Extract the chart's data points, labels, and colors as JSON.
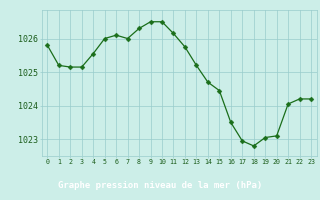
{
  "x": [
    0,
    1,
    2,
    3,
    4,
    5,
    6,
    7,
    8,
    9,
    10,
    11,
    12,
    13,
    14,
    15,
    16,
    17,
    18,
    19,
    20,
    21,
    22,
    23
  ],
  "y": [
    1025.8,
    1025.2,
    1025.15,
    1025.15,
    1025.55,
    1026.0,
    1026.1,
    1026.0,
    1026.3,
    1026.5,
    1026.5,
    1026.15,
    1025.75,
    1025.2,
    1024.7,
    1024.45,
    1023.5,
    1022.95,
    1022.8,
    1023.05,
    1023.1,
    1024.05,
    1024.2,
    1024.2
  ],
  "line_color": "#1a6e1a",
  "marker": "D",
  "marker_size": 2.5,
  "bg_color": "#cceee8",
  "grid_color": "#99cccc",
  "bottom_bar_color": "#2d6e2d",
  "title": "Graphe pression niveau de la mer (hPa)",
  "ytick_labels": [
    "1023",
    "1024",
    "1025",
    "1026"
  ],
  "ytick_values": [
    1023,
    1024,
    1025,
    1026
  ],
  "xtick_labels": [
    "0",
    "1",
    "2",
    "3",
    "4",
    "5",
    "6",
    "7",
    "8",
    "9",
    "10",
    "11",
    "12",
    "13",
    "14",
    "15",
    "16",
    "17",
    "18",
    "19",
    "20",
    "21",
    "22",
    "23"
  ],
  "ylim": [
    1022.5,
    1026.85
  ],
  "xlim": [
    -0.5,
    23.5
  ],
  "tick_label_color": "#1a5c1a",
  "title_color": "#ffffff",
  "title_bg_color": "#2d6e2d"
}
